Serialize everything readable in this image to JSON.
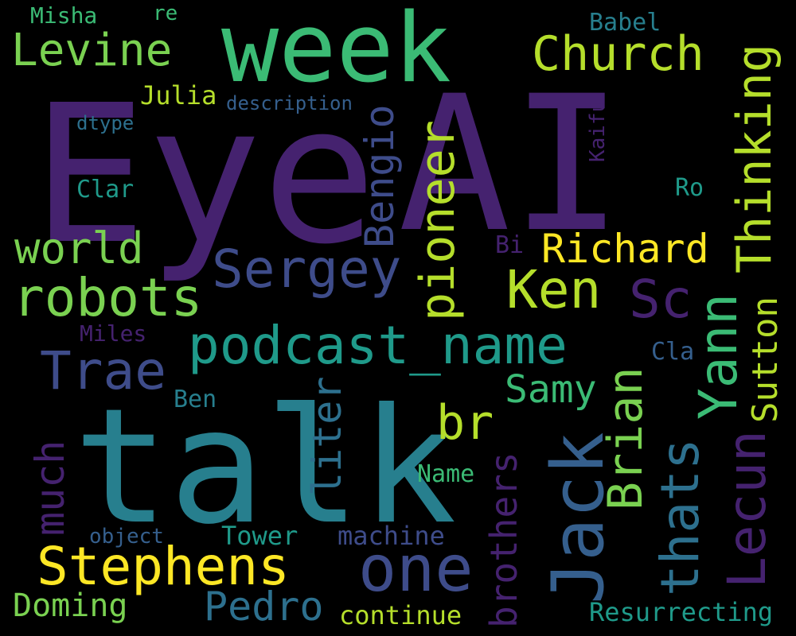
{
  "palette": {
    "background": "#000000",
    "dark_purple": "#45226f",
    "indigo": "#3e4c8a",
    "slate_blue": "#355f8d",
    "blue_teal": "#2d708e",
    "teal": "#277f8e",
    "teal_green": "#1f9a8a",
    "green": "#3bbb75",
    "light_green": "#7ad151",
    "yellow_green": "#b5de2b",
    "yellow": "#fde725"
  },
  "words": [
    {
      "text": "Eye"
    },
    {
      "text": "AI"
    },
    {
      "text": "talk"
    },
    {
      "text": "week"
    },
    {
      "text": "Levine"
    },
    {
      "text": "Church"
    },
    {
      "text": "Thinking"
    },
    {
      "text": "Misha"
    },
    {
      "text": "re"
    },
    {
      "text": "Babel"
    },
    {
      "text": "Julia"
    },
    {
      "text": "description"
    },
    {
      "text": "dtype"
    },
    {
      "text": "Kaifu"
    },
    {
      "text": "Bengio"
    },
    {
      "text": "pioneer"
    },
    {
      "text": "Clar"
    },
    {
      "text": "Ro"
    },
    {
      "text": "world"
    },
    {
      "text": "Sergey"
    },
    {
      "text": "Bi"
    },
    {
      "text": "Richard"
    },
    {
      "text": "robots"
    },
    {
      "text": "Ken"
    },
    {
      "text": "Sc"
    },
    {
      "text": "Yann"
    },
    {
      "text": "Sutton"
    },
    {
      "text": "podcast_name"
    },
    {
      "text": "Miles"
    },
    {
      "text": "Trae"
    },
    {
      "text": "Cla"
    },
    {
      "text": "Jack"
    },
    {
      "text": "Samy"
    },
    {
      "text": "br"
    },
    {
      "text": "Brian"
    },
    {
      "text": "Lecun"
    },
    {
      "text": "much"
    },
    {
      "text": "Ben"
    },
    {
      "text": "liter"
    },
    {
      "text": "thats"
    },
    {
      "text": "Name"
    },
    {
      "text": "brothers"
    },
    {
      "text": "Stephens"
    },
    {
      "text": "one"
    },
    {
      "text": "object"
    },
    {
      "text": "Tower"
    },
    {
      "text": "machine"
    },
    {
      "text": "Pedro"
    },
    {
      "text": "Doming"
    },
    {
      "text": "continue"
    },
    {
      "text": "Resurrecting"
    }
  ]
}
